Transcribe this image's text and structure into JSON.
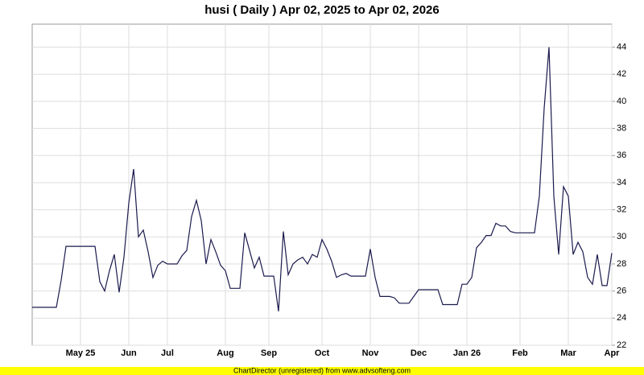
{
  "chart_data": {
    "type": "line",
    "title": "husi ( Daily ) Apr 02, 2025 to Apr 02, 2026",
    "footer": "ChartDirector (unregistered) from www.advsofteng.com",
    "categories": [
      null,
      null,
      null,
      null,
      null,
      null,
      null,
      null,
      null,
      null,
      "May 25",
      null,
      null,
      null,
      null,
      null,
      null,
      null,
      null,
      null,
      "Jun",
      null,
      null,
      null,
      null,
      null,
      null,
      null,
      "Jul",
      null,
      null,
      null,
      null,
      null,
      null,
      null,
      null,
      null,
      null,
      null,
      "Aug",
      null,
      null,
      null,
      null,
      null,
      null,
      null,
      null,
      "Sep",
      null,
      null,
      null,
      null,
      null,
      null,
      null,
      null,
      null,
      null,
      "Oct",
      null,
      null,
      null,
      null,
      null,
      null,
      null,
      null,
      null,
      "Nov",
      null,
      null,
      null,
      null,
      null,
      null,
      null,
      null,
      null,
      "Dec",
      null,
      null,
      null,
      null,
      null,
      null,
      null,
      null,
      null,
      "Jan 26",
      null,
      null,
      null,
      null,
      null,
      null,
      null,
      null,
      null,
      null,
      "Feb",
      null,
      null,
      null,
      null,
      null,
      null,
      null,
      null,
      null,
      "Mar",
      null,
      null,
      null,
      null,
      null,
      null,
      null,
      null,
      "Apr"
    ],
    "series": [
      {
        "name": "husi",
        "color": "#1a1a4e",
        "values": [
          24.8,
          24.8,
          24.8,
          24.8,
          24.8,
          24.8,
          26.8,
          29.3,
          29.3,
          29.3,
          29.3,
          29.3,
          29.3,
          29.3,
          26.7,
          26,
          27.5,
          28.7,
          25.9,
          28.5,
          32.5,
          35,
          30,
          30.5,
          28.9,
          27,
          27.9,
          28.2,
          28,
          28,
          28,
          28.6,
          29,
          31.5,
          32.7,
          31.2,
          28,
          29.8,
          28.9,
          27.9,
          27.5,
          26.2,
          26.2,
          26.2,
          30.3,
          29,
          27.7,
          28.5,
          27.1,
          27.1,
          27.1,
          24.5,
          30.4,
          27.2,
          28,
          28.3,
          28.5,
          28,
          28.7,
          28.5,
          29.8,
          29.1,
          28.2,
          27,
          27.2,
          27.3,
          27.1,
          27.1,
          27.1,
          27.1,
          29.1,
          27,
          25.6,
          25.6,
          25.6,
          25.5,
          25.1,
          25.1,
          25.1,
          25.6,
          26.1,
          26.1,
          26.1,
          26.1,
          26.1,
          25,
          25,
          25,
          25,
          26.5,
          26.5,
          27,
          29.2,
          29.6,
          30.1,
          30.1,
          31,
          30.8,
          30.8,
          30.4,
          30.3,
          30.3,
          30.3,
          30.3,
          30.3,
          33,
          39.5,
          44,
          33,
          28.7,
          33.7,
          33,
          28.7,
          29.6,
          28.9,
          27,
          26.5,
          28.7,
          26.4,
          26.4,
          28.8
        ]
      }
    ],
    "ylim": [
      22,
      45.7
    ],
    "yticks": [
      22,
      24,
      26,
      28,
      30,
      32,
      34,
      36,
      38,
      40,
      42,
      44
    ],
    "grid": true
  }
}
